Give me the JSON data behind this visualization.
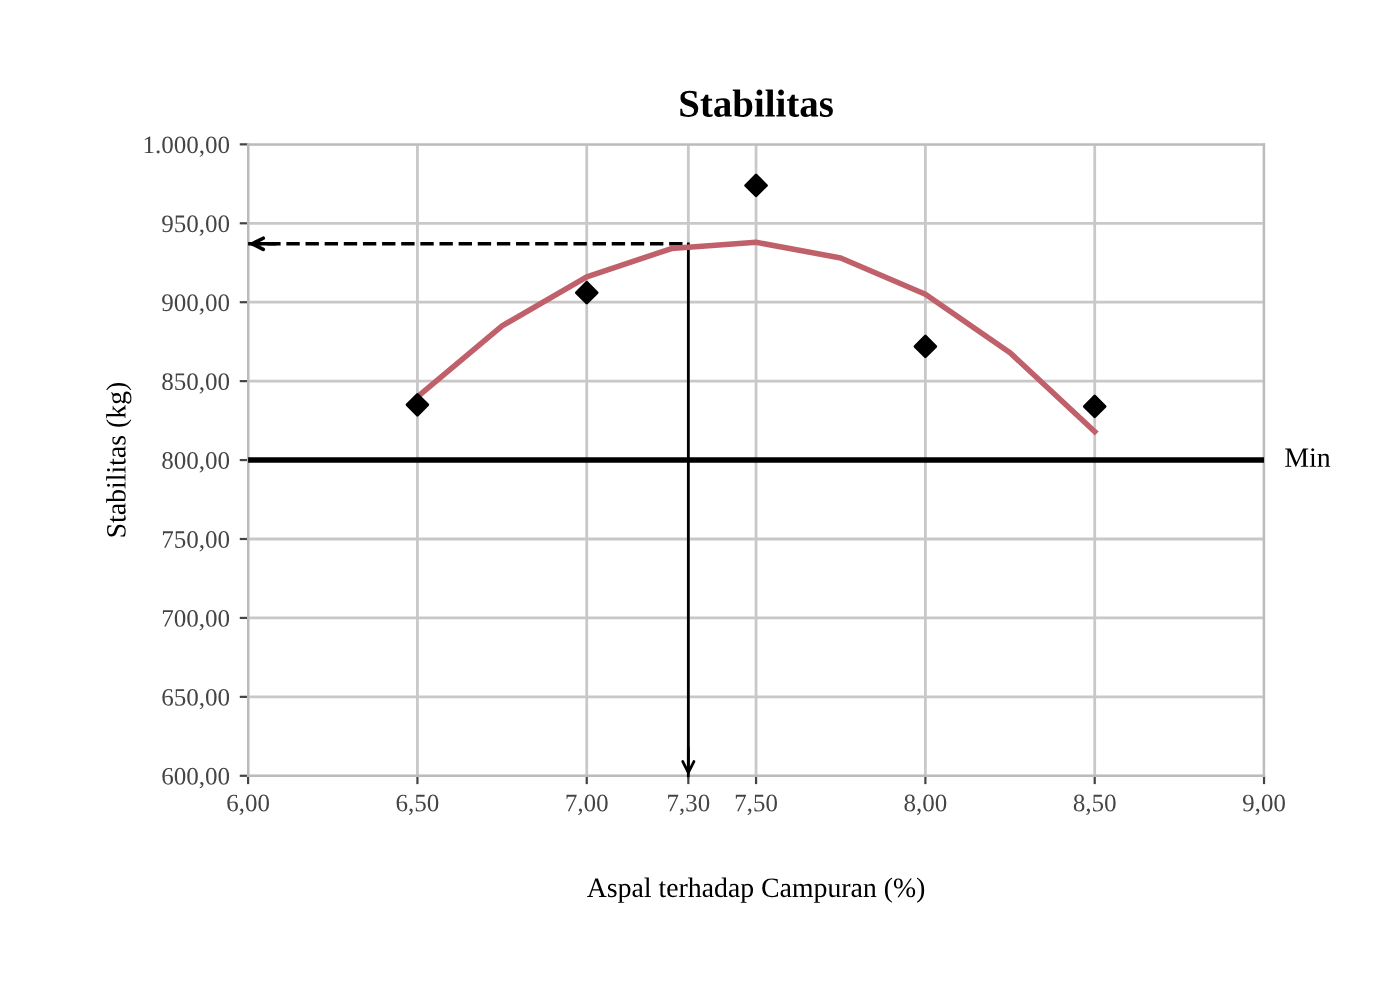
{
  "chart_data": {
    "type": "scatter",
    "title": "Stabilitas",
    "xlabel": "Aspal terhadap Campuran (%)",
    "ylabel": "Stabilitas (kg)",
    "series": [
      {
        "color": "#000000",
        "marker": "diamond",
        "x": [
          6.5,
          7.0,
          7.5,
          8.0,
          8.5
        ],
        "values": [
          835,
          906,
          974,
          872,
          834
        ]
      },
      {
        "type": "line",
        "color": "#c0606a",
        "marker": "none",
        "x": [
          6.5,
          6.75,
          7.0,
          7.25,
          7.5,
          7.75,
          8.0,
          8.25,
          8.5
        ],
        "values": [
          840,
          885,
          916,
          934,
          938,
          928,
          905,
          868,
          818
        ]
      }
    ],
    "xlim": [
      6,
      9
    ],
    "xticks": [
      {
        "value": 6,
        "label": "6,00"
      },
      {
        "value": 6.5,
        "label": "6,50"
      },
      {
        "value": 7,
        "label": "7,00"
      },
      {
        "value": 7.3,
        "label": "7,30"
      },
      {
        "value": 7.5,
        "label": "7,50"
      },
      {
        "value": 8,
        "label": "8,00"
      },
      {
        "value": 8.5,
        "label": "8,50"
      },
      {
        "value": 9,
        "label": "9,00"
      }
    ],
    "ylim": [
      600,
      1000
    ],
    "yticks": [
      {
        "value": 600,
        "label": "600,00"
      },
      {
        "value": 650,
        "label": "650,00"
      },
      {
        "value": 700,
        "label": "700,00"
      },
      {
        "value": 750,
        "label": "750,00"
      },
      {
        "value": 800,
        "label": "800,00"
      },
      {
        "value": 850,
        "label": "850,00"
      },
      {
        "value": 900,
        "label": "900,00"
      },
      {
        "value": 950,
        "label": "950,00"
      },
      {
        "value": 1000,
        "label": "1.000,00"
      }
    ],
    "ref_lines": [
      {
        "axis": "y",
        "value": 800,
        "label": "Min",
        "color": "#000000",
        "line_style": "solid"
      },
      {
        "axis": "y",
        "value": 937,
        "color": "#000000",
        "line_style": "dashed"
      },
      {
        "axis": "x",
        "value": 7.3,
        "color": "#000000",
        "line_style": "solid"
      }
    ],
    "grid": true,
    "legend": false
  }
}
